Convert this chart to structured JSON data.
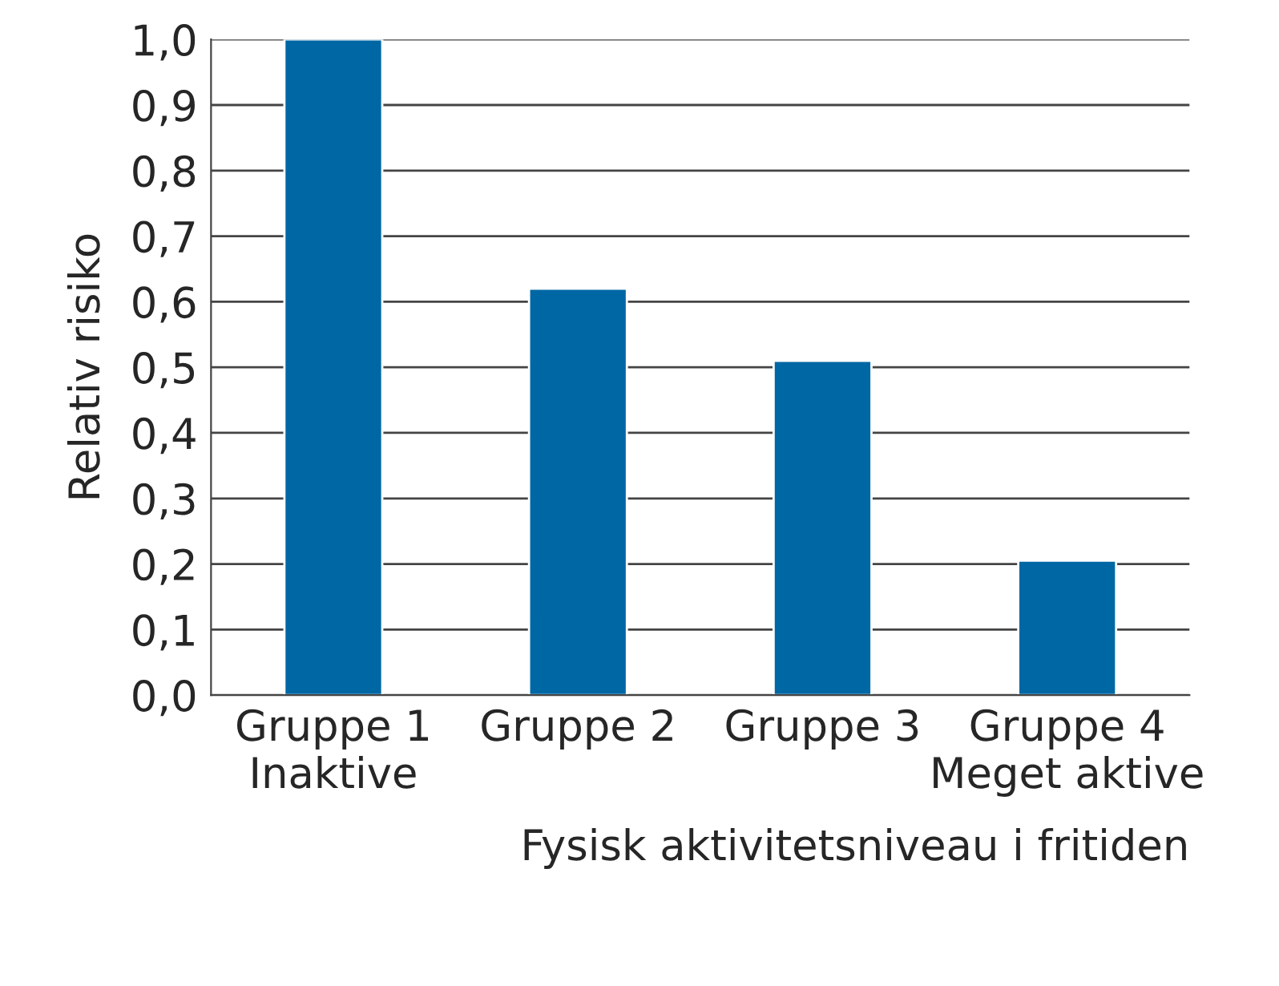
{
  "chart_data": {
    "type": "bar",
    "xlabel": "Fysisk aktivitetsniveau i fritiden",
    "ylabel": "Relativ risiko",
    "categories": [
      "Gruppe 1\nInaktive",
      "Gruppe 2",
      "Gruppe 3",
      "Gruppe 4\nMeget aktive"
    ],
    "values": [
      1.0,
      0.62,
      0.51,
      0.205
    ],
    "color": "#0067a5",
    "ylim": [
      0,
      1.0
    ],
    "yticks": [
      {
        "value": 0,
        "label": "0,0"
      },
      {
        "value": 0.1,
        "label": "0,1"
      },
      {
        "value": 0.2,
        "label": "0,2"
      },
      {
        "value": 0.3,
        "label": "0,3"
      },
      {
        "value": 0.4,
        "label": "0,4"
      },
      {
        "value": 0.5,
        "label": "0,5"
      },
      {
        "value": 0.6,
        "label": "0,6"
      },
      {
        "value": 0.7,
        "label": "0,7"
      },
      {
        "value": 0.8,
        "label": "0,8"
      },
      {
        "value": 0.9,
        "label": "0,9"
      },
      {
        "value": 1.0,
        "label": "1,0"
      }
    ],
    "grid": "y"
  }
}
